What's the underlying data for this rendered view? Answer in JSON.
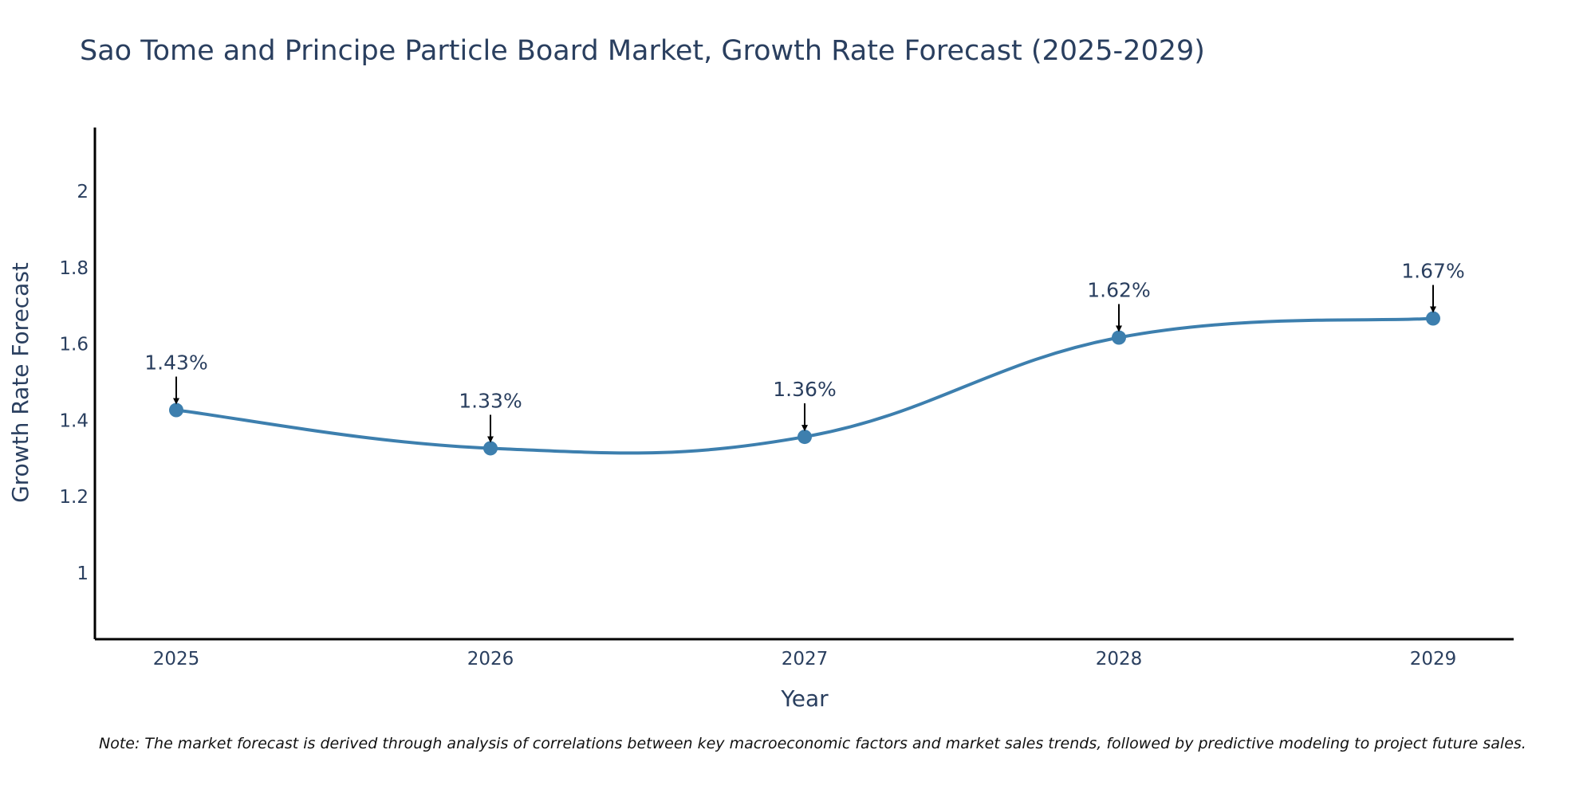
{
  "chart_data": {
    "type": "line",
    "title": "Sao Tome and Principe Particle Board Market, Growth Rate Forecast (2025-2029)",
    "xlabel": "Year",
    "ylabel": "Growth Rate Forecast",
    "categories": [
      "2025",
      "2026",
      "2027",
      "2028",
      "2029"
    ],
    "values": [
      1.43,
      1.33,
      1.36,
      1.62,
      1.67
    ],
    "data_labels": [
      "1.43%",
      "1.33%",
      "1.36%",
      "1.62%",
      "1.67%"
    ],
    "y_ticks": [
      1,
      1.2,
      1.4,
      1.6,
      1.8,
      2
    ],
    "y_tick_labels": [
      "1",
      "1.2",
      "1.4",
      "1.6",
      "1.8",
      "2"
    ],
    "ylim": [
      0.83,
      2.17
    ],
    "grid": false,
    "line_shape": "spline",
    "series_color": "#3d7fae",
    "note": "Note: The market forecast is derived through analysis of correlations between key macroeconomic factors and market sales trends, followed by predictive modeling to project future sales."
  }
}
